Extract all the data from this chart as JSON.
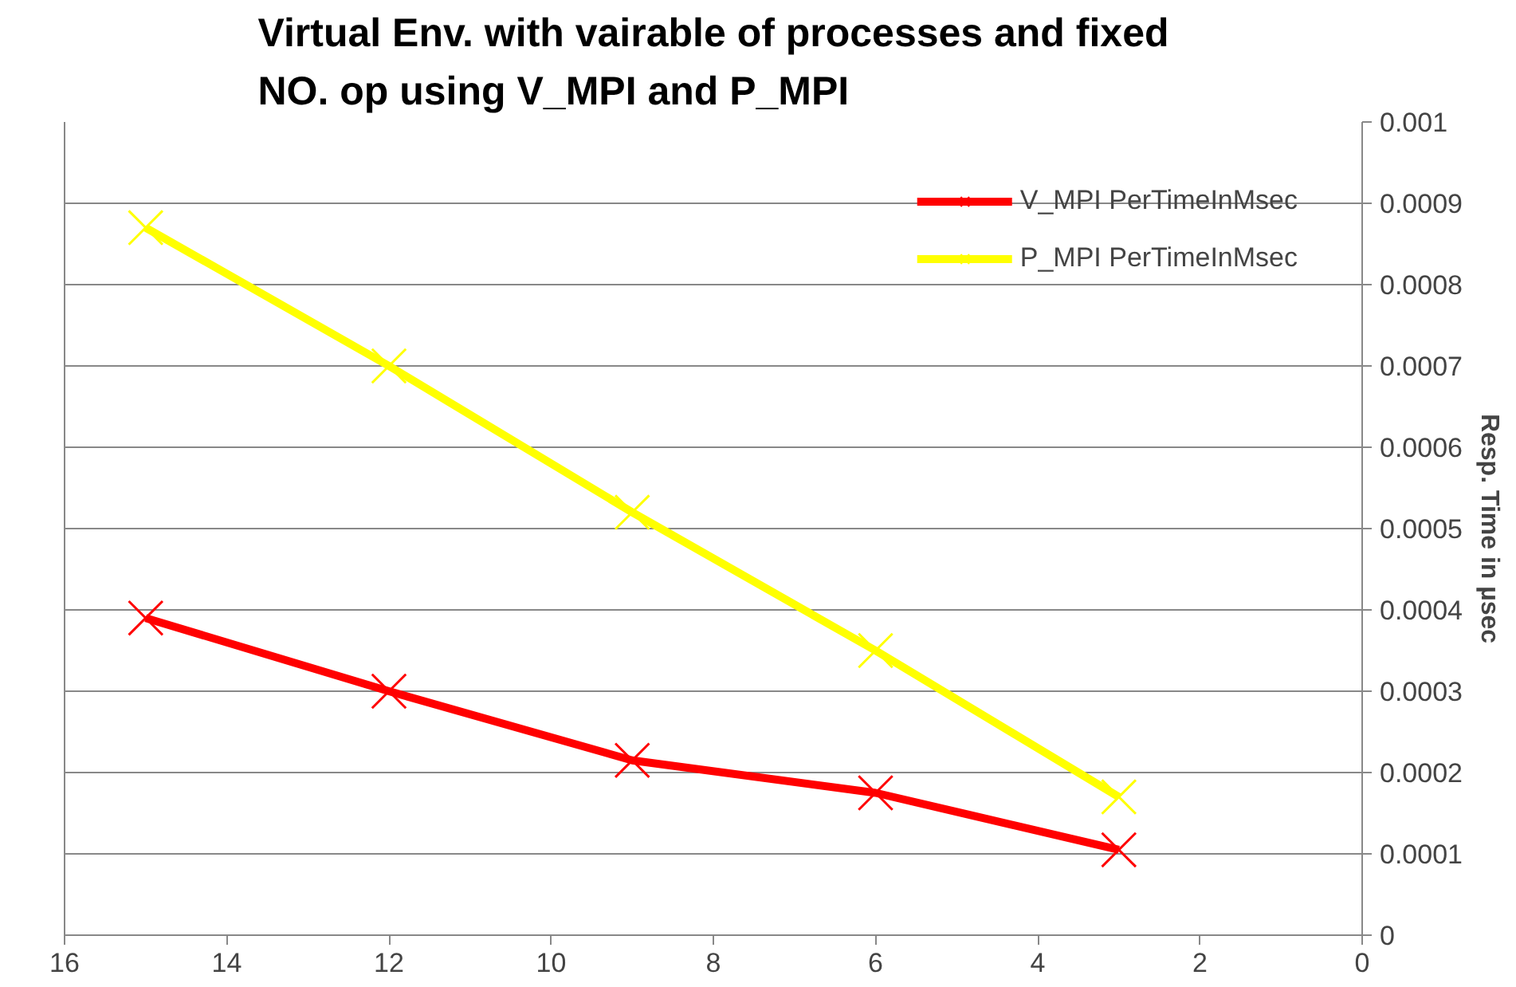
{
  "chart_data": {
    "type": "line",
    "title": "Virtual Env. with vairable of processes and fixed NO. op using V_MPI and P_MPI",
    "ylabel": "Resp. Time in µsec",
    "x": [
      15,
      12,
      9,
      6,
      3
    ],
    "series": [
      {
        "name": "V_MPI PerTimeInMsec",
        "color": "#ff0000",
        "marker": "cross",
        "values": [
          0.00039,
          0.0003,
          0.000215,
          0.000175,
          0.000105
        ]
      },
      {
        "name": "P_MPI PerTimeInMsec",
        "color": "#ffff00",
        "marker": "cross",
        "values": [
          0.00087,
          0.0007,
          0.00052,
          0.00035,
          0.00017
        ]
      }
    ],
    "xlim": [
      16,
      0
    ],
    "xticks": [
      16,
      14,
      12,
      10,
      8,
      6,
      4,
      2,
      0
    ],
    "ylim": [
      0,
      0.001
    ],
    "yticks": [
      0,
      0.0001,
      0.0002,
      0.0003,
      0.0004,
      0.0005,
      0.0006,
      0.0007,
      0.0008,
      0.0009,
      0.001
    ],
    "grid": "y",
    "legend": "top right"
  }
}
